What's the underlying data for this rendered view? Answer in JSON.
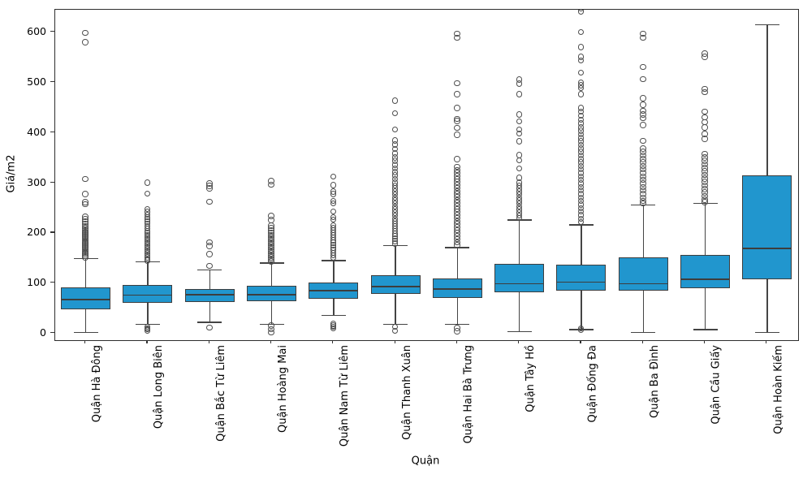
{
  "chart_data": {
    "type": "boxplot",
    "title": "",
    "xlabel": "Quận",
    "ylabel": "Giá/m2",
    "ylim": [
      -13,
      646
    ],
    "yticks": [
      0,
      100,
      200,
      300,
      400,
      500,
      600
    ],
    "grid": false,
    "legend": "none",
    "box_fill_color": "#2196ce",
    "box_edge_color": "#3d3d3d",
    "whisker_color": "#444444",
    "flier_edge_color": "#4d4d4d",
    "series": [
      {
        "label": "Quận Hà Đông",
        "whislo": 2,
        "q1": 48,
        "med": 67,
        "q3": 91,
        "whishi": 149,
        "fliers_high": [
          598,
          580,
          307,
          277,
          261,
          257,
          232,
          227,
          222,
          217,
          213,
          209,
          205,
          202,
          199,
          196,
          193,
          190,
          187,
          184,
          181,
          178,
          175,
          172,
          169,
          166,
          163,
          160,
          157,
          154,
          151
        ],
        "fliers_low": []
      },
      {
        "label": "Quận Long Biên",
        "whislo": 18,
        "q1": 61,
        "med": 76,
        "q3": 96,
        "whishi": 142,
        "fliers_high": [
          300,
          278,
          247,
          241,
          236,
          231,
          227,
          222,
          218,
          213,
          208,
          203,
          199,
          195,
          191,
          187,
          183,
          179,
          175,
          171,
          167,
          163,
          159,
          155,
          151,
          147,
          144
        ],
        "fliers_low": [
          12,
          9,
          7,
          5
        ]
      },
      {
        "label": "Quận Bắc Từ Liêm",
        "whislo": 22,
        "q1": 63,
        "med": 77,
        "q3": 88,
        "whishi": 126,
        "fliers_high": [
          298,
          293,
          288,
          262,
          181,
          173,
          157,
          134
        ],
        "fliers_low": [
          11
        ]
      },
      {
        "label": "Quận Hoàng Mai",
        "whislo": 18,
        "q1": 64,
        "med": 77,
        "q3": 95,
        "whishi": 140,
        "fliers_high": [
          303,
          296,
          233,
          225,
          214,
          209,
          204,
          199,
          195,
          191,
          187,
          183,
          179,
          175,
          171,
          167,
          163,
          159,
          155,
          151,
          147,
          143
        ],
        "fliers_low": [
          15,
          7,
          1
        ]
      },
      {
        "label": "Quận Nam Từ Liêm",
        "whislo": 36,
        "q1": 69,
        "med": 85,
        "q3": 101,
        "whishi": 145,
        "fliers_high": [
          312,
          295,
          282,
          277,
          263,
          258,
          242,
          231,
          226,
          215,
          210,
          205,
          200,
          195,
          190,
          185,
          180,
          175,
          170,
          165,
          160,
          155,
          150
        ],
        "fliers_low": [
          18,
          15,
          12,
          9
        ]
      },
      {
        "label": "Quận Thanh Xuân",
        "whislo": 18,
        "q1": 78,
        "med": 93,
        "q3": 116,
        "whishi": 175,
        "fliers_high": [
          463,
          438,
          406,
          384,
          376,
          367,
          358,
          350,
          343,
          335,
          328,
          321,
          314,
          307,
          300,
          294,
          288,
          282,
          276,
          270,
          264,
          258,
          252,
          246,
          240,
          234,
          228,
          223,
          218,
          213,
          208,
          203,
          198,
          193,
          188,
          183,
          178
        ],
        "fliers_low": [
          12,
          4
        ]
      },
      {
        "label": "Quận Hai Bà Trưng",
        "whislo": 18,
        "q1": 70,
        "med": 88,
        "q3": 110,
        "whishi": 171,
        "fliers_high": [
          597,
          589,
          498,
          476,
          449,
          427,
          423,
          409,
          395,
          347,
          331,
          325,
          319,
          313,
          307,
          301,
          295,
          289,
          283,
          277,
          271,
          265,
          259,
          253,
          247,
          241,
          235,
          229,
          223,
          217,
          211,
          205,
          199,
          193,
          187,
          181,
          175
        ],
        "fliers_low": [
          10,
          3
        ]
      },
      {
        "label": "Quận Tây Hồ",
        "whislo": 3,
        "q1": 81,
        "med": 99,
        "q3": 139,
        "whishi": 226,
        "fliers_high": [
          505,
          497,
          476,
          436,
          422,
          406,
          398,
          382,
          355,
          344,
          328,
          309,
          300,
          294,
          288,
          282,
          276,
          270,
          264,
          258,
          252,
          246,
          240,
          234,
          229
        ],
        "fliers_low": []
      },
      {
        "label": "Quận Đống Đa",
        "whislo": 7,
        "q1": 85,
        "med": 102,
        "q3": 137,
        "whishi": 216,
        "fliers_high": [
          648,
          641,
          600,
          570,
          551,
          543,
          519,
          500,
          494,
          488,
          476,
          449,
          441,
          433,
          425,
          418,
          410,
          403,
          396,
          389,
          382,
          375,
          368,
          361,
          354,
          347,
          340,
          333,
          326,
          319,
          312,
          305,
          298,
          291,
          284,
          277,
          270,
          263,
          256,
          249,
          242,
          235,
          228,
          221
        ],
        "fliers_low": [
          9,
          6
        ]
      },
      {
        "label": "Quận Ba Đình",
        "whislo": 2,
        "q1": 85,
        "med": 99,
        "q3": 152,
        "whishi": 256,
        "fliers_high": [
          597,
          589,
          530,
          506,
          468,
          455,
          443,
          436,
          428,
          415,
          383,
          368,
          361,
          354,
          347,
          340,
          333,
          326,
          319,
          312,
          305,
          298,
          291,
          284,
          277,
          270,
          263,
          258
        ],
        "fliers_low": []
      },
      {
        "label": "Quận Cầu Giấy",
        "whislo": 7,
        "q1": 90,
        "med": 108,
        "q3": 156,
        "whishi": 259,
        "fliers_high": [
          557,
          551,
          487,
          480,
          441,
          430,
          420,
          410,
          397,
          387,
          357,
          350,
          343,
          336,
          329,
          322,
          315,
          308,
          301,
          294,
          287,
          280,
          273,
          266,
          261
        ],
        "fliers_low": []
      },
      {
        "label": "Quận Hoàn Kiếm",
        "whislo": 2,
        "q1": 107,
        "med": 169,
        "q3": 315,
        "whishi": 615,
        "fliers_high": [],
        "fliers_low": []
      }
    ]
  }
}
